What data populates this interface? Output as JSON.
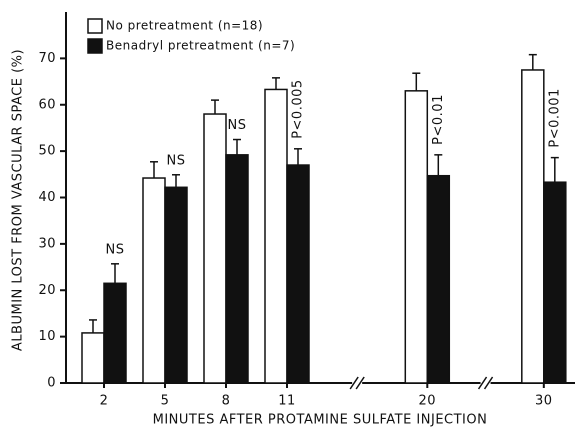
{
  "chart_data": {
    "type": "bar",
    "x_label": "MINUTES AFTER PROTAMINE SULFATE INJECTION",
    "y_label": "ALBUMIN LOST FROM VASCULAR SPACE (%)",
    "categories": [
      "2",
      "5",
      "8",
      "11",
      "20",
      "30"
    ],
    "series": [
      {
        "name": "No pretreatment (n=18)",
        "color": "#ffffff",
        "values": [
          10.8,
          44.2,
          58,
          63.3,
          63,
          67.5
        ],
        "errors": [
          2.8,
          3.5,
          3,
          2.5,
          3.8,
          3.3
        ]
      },
      {
        "name": "Benadryl pretreatment (n=7)",
        "color": "#111111",
        "values": [
          21.5,
          42.2,
          49.2,
          47,
          44.7,
          43.3
        ],
        "errors": [
          4.2,
          2.7,
          3.3,
          3.5,
          4.5,
          5.3
        ]
      }
    ],
    "annotations": [
      "NS",
      "NS",
      "NS",
      "P<0.005",
      "P<0.01",
      "P<0.001"
    ],
    "ylim": [
      0,
      80
    ],
    "yticks": [
      0,
      10,
      20,
      30,
      40,
      50,
      60,
      70
    ],
    "legend": "top-left"
  }
}
